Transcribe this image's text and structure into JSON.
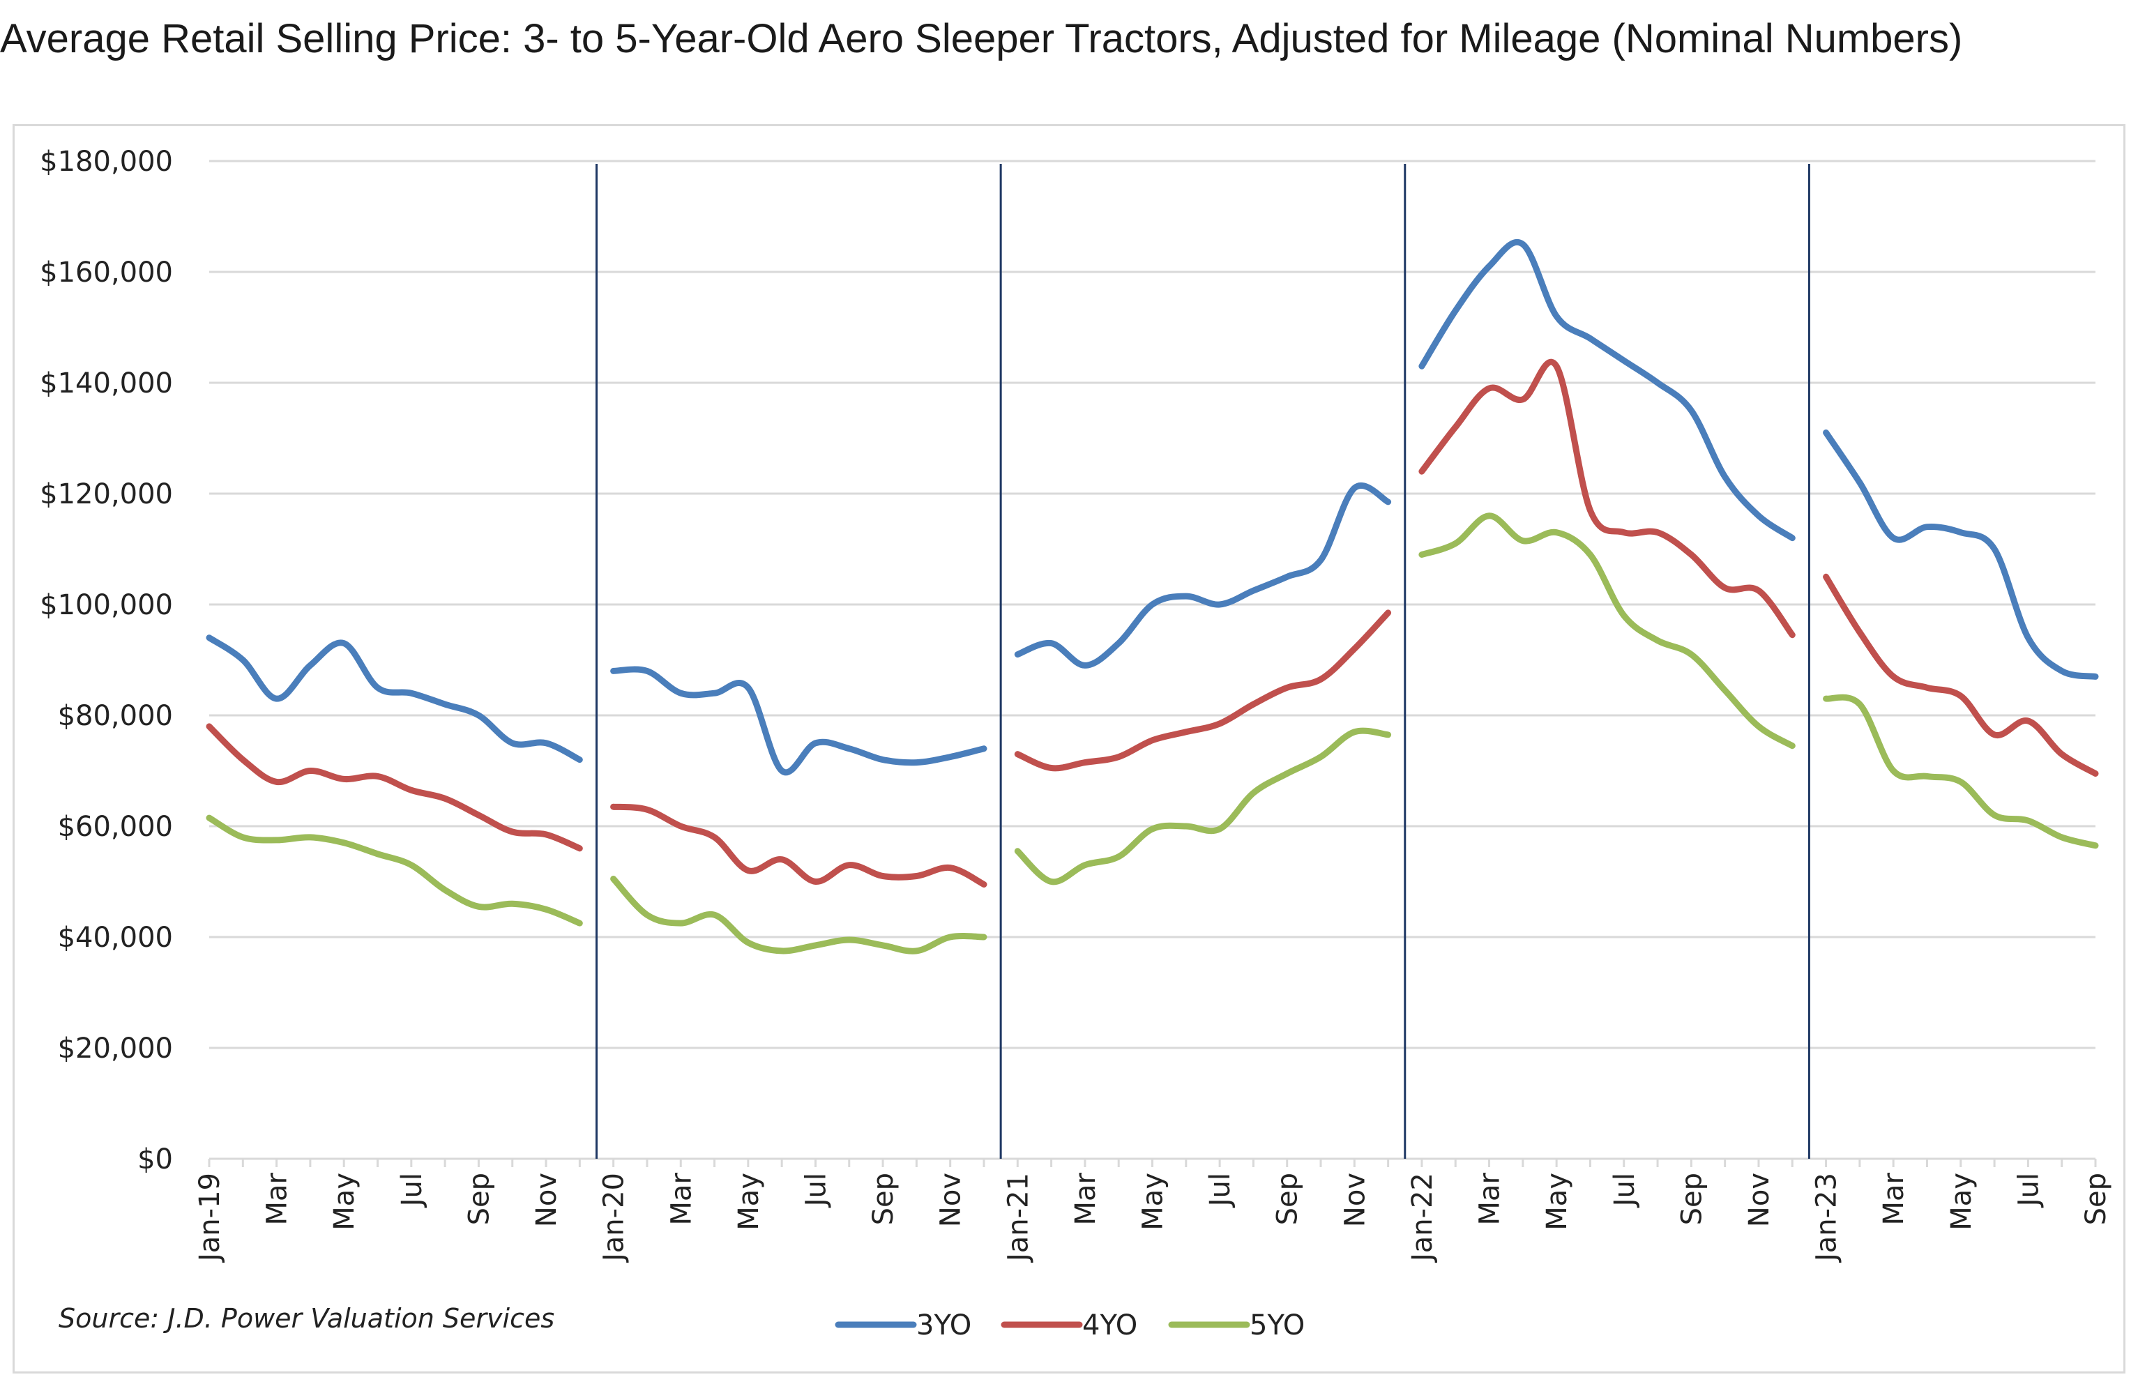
{
  "title": "Average Retail Selling Price: 3- to 5-Year-Old Aero Sleeper Tractors, Adjusted for Mileage (Nominal Numbers)",
  "source": "Source: J.D. Power Valuation Services",
  "chart_data": {
    "type": "line",
    "title": "Average Retail Selling Price: 3- to 5-Year-Old Aero Sleeper Tractors, Adjusted for Mileage (Nominal Numbers)",
    "ylim": [
      0,
      180000
    ],
    "yticks": [
      0,
      20000,
      40000,
      60000,
      80000,
      100000,
      120000,
      140000,
      160000,
      180000
    ],
    "ytick_labels": [
      "$0",
      "$20,000",
      "$40,000",
      "$60,000",
      "$80,000",
      "$100,000",
      "$120,000",
      "$140,000",
      "$160,000",
      "$180,000"
    ],
    "grid": true,
    "legend_position": "bottom",
    "x": [
      "Jan-19",
      "Feb-19",
      "Mar-19",
      "Apr-19",
      "May-19",
      "Jun-19",
      "Jul-19",
      "Aug-19",
      "Sep-19",
      "Oct-19",
      "Nov-19",
      "Dec-19",
      "Jan-20",
      "Feb-20",
      "Mar-20",
      "Apr-20",
      "May-20",
      "Jun-20",
      "Jul-20",
      "Aug-20",
      "Sep-20",
      "Oct-20",
      "Nov-20",
      "Dec-20",
      "Jan-21",
      "Feb-21",
      "Mar-21",
      "Apr-21",
      "May-21",
      "Jun-21",
      "Jul-21",
      "Aug-21",
      "Sep-21",
      "Oct-21",
      "Nov-21",
      "Dec-21",
      "Jan-22",
      "Feb-22",
      "Mar-22",
      "Apr-22",
      "May-22",
      "Jun-22",
      "Jul-22",
      "Aug-22",
      "Sep-22",
      "Oct-22",
      "Nov-22",
      "Dec-22",
      "Jan-23",
      "Feb-23",
      "Mar-23",
      "Apr-23",
      "May-23",
      "Jun-23",
      "Jul-23",
      "Aug-23",
      "Sep-23"
    ],
    "xtick_labels": [
      "Jan-19",
      "",
      "Mar",
      "",
      "May",
      "",
      "Jul",
      "",
      "Sep",
      "",
      "Nov",
      "",
      "Jan-20",
      "",
      "Mar",
      "",
      "May",
      "",
      "Jul",
      "",
      "Sep",
      "",
      "Nov",
      "",
      "Jan-21",
      "",
      "Mar",
      "",
      "May",
      "",
      "Jul",
      "",
      "Sep",
      "",
      "Nov",
      "",
      "Jan-22",
      "",
      "Mar",
      "",
      "May",
      "",
      "Jul",
      "",
      "Sep",
      "",
      "Nov",
      "",
      "Jan-23",
      "",
      "Mar",
      "",
      "May",
      "",
      "Jul",
      "",
      "Sep"
    ],
    "year_segments": [
      [
        0,
        11
      ],
      [
        12,
        23
      ],
      [
        24,
        35
      ],
      [
        36,
        47
      ],
      [
        48,
        56
      ]
    ],
    "series": [
      {
        "name": "3YO",
        "color": "#4a7ebb",
        "values": [
          94000,
          90000,
          83000,
          89000,
          93000,
          85000,
          84000,
          82000,
          80000,
          75000,
          75000,
          72000,
          88000,
          88000,
          84000,
          84000,
          85000,
          70000,
          75000,
          74000,
          72000,
          71500,
          72500,
          74000,
          91000,
          93000,
          89000,
          93000,
          100000,
          101500,
          100000,
          102500,
          105000,
          108000,
          121000,
          118500,
          143000,
          153000,
          161000,
          165000,
          152000,
          148000,
          144000,
          140000,
          135000,
          123000,
          116000,
          112000,
          131000,
          122000,
          112000,
          114000,
          113000,
          110000,
          94000,
          88000,
          87000
        ]
      },
      {
        "name": "4YO",
        "color": "#c0504d",
        "values": [
          78000,
          72000,
          68000,
          70000,
          68500,
          69000,
          66500,
          65000,
          62000,
          59000,
          58500,
          56000,
          63500,
          63000,
          60000,
          58000,
          52000,
          54000,
          50000,
          53000,
          51000,
          51000,
          52500,
          49500,
          73000,
          70500,
          71500,
          72500,
          75500,
          77000,
          78500,
          82000,
          85000,
          86500,
          92000,
          98500,
          124000,
          132000,
          139000,
          137000,
          143000,
          117000,
          113000,
          113000,
          109000,
          103000,
          102500,
          94500,
          105000,
          95000,
          87000,
          85000,
          83500,
          76500,
          79000,
          73000,
          69500
        ]
      },
      {
        "name": "5YO",
        "color": "#9bbb59",
        "values": [
          61500,
          58000,
          57500,
          58000,
          57000,
          55000,
          53000,
          48500,
          45500,
          46000,
          45000,
          42500,
          50500,
          44000,
          42500,
          44000,
          39000,
          37500,
          38500,
          39500,
          38500,
          37500,
          40000,
          40000,
          55500,
          50000,
          53000,
          54500,
          59500,
          60000,
          59500,
          66000,
          69500,
          72500,
          77000,
          76500,
          109000,
          111000,
          116000,
          111500,
          113000,
          109000,
          98000,
          93500,
          91000,
          84500,
          78000,
          74500,
          83000,
          82000,
          70000,
          69000,
          68000,
          62000,
          61000,
          58000,
          56500
        ]
      }
    ]
  }
}
